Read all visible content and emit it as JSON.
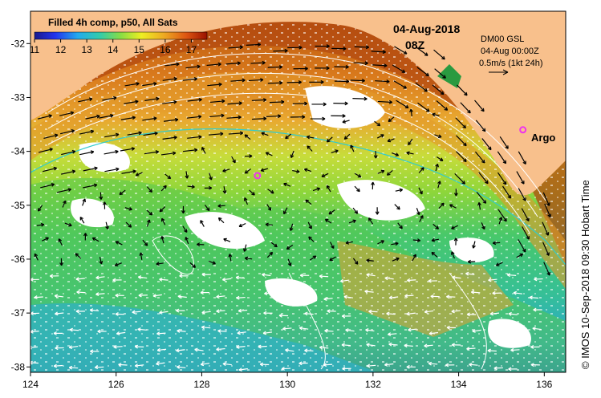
{
  "title": "Filled 4h comp, p50, All Sats",
  "colorbar": {
    "ticks": [
      "11",
      "12",
      "13",
      "14",
      "15",
      "16",
      "17"
    ],
    "range": [
      11,
      17.6
    ]
  },
  "date": "04-Aug-2018",
  "time": "08Z",
  "current_info": {
    "line1": "DM00 GSL",
    "line2": "04-Aug 00:00Z",
    "line3": "0.5m/s (1kt 24h)"
  },
  "argo_label": "Argo",
  "axes": {
    "x_ticks": [
      "124",
      "126",
      "128",
      "130",
      "132",
      "134",
      "136"
    ],
    "y_ticks": [
      "-32",
      "-33",
      "-34",
      "-35",
      "-36",
      "-37",
      "-38"
    ],
    "lon_range": [
      124,
      136.5
    ],
    "lat_range": [
      -38.1,
      -31.4
    ]
  },
  "argo_floats": [
    {
      "lon": 129.3,
      "lat": -34.45
    },
    {
      "lon": 135.5,
      "lat": -33.6
    }
  ],
  "credit": "© IMOS 10-Sep-2018 09:30 Hobart Time",
  "colors": {
    "land": "#f8c08c",
    "cloud": "#ffffff",
    "argo": "#ee33ee",
    "arrow": "#000000",
    "contour": "#ffffff",
    "isobath": "#33cccc"
  }
}
